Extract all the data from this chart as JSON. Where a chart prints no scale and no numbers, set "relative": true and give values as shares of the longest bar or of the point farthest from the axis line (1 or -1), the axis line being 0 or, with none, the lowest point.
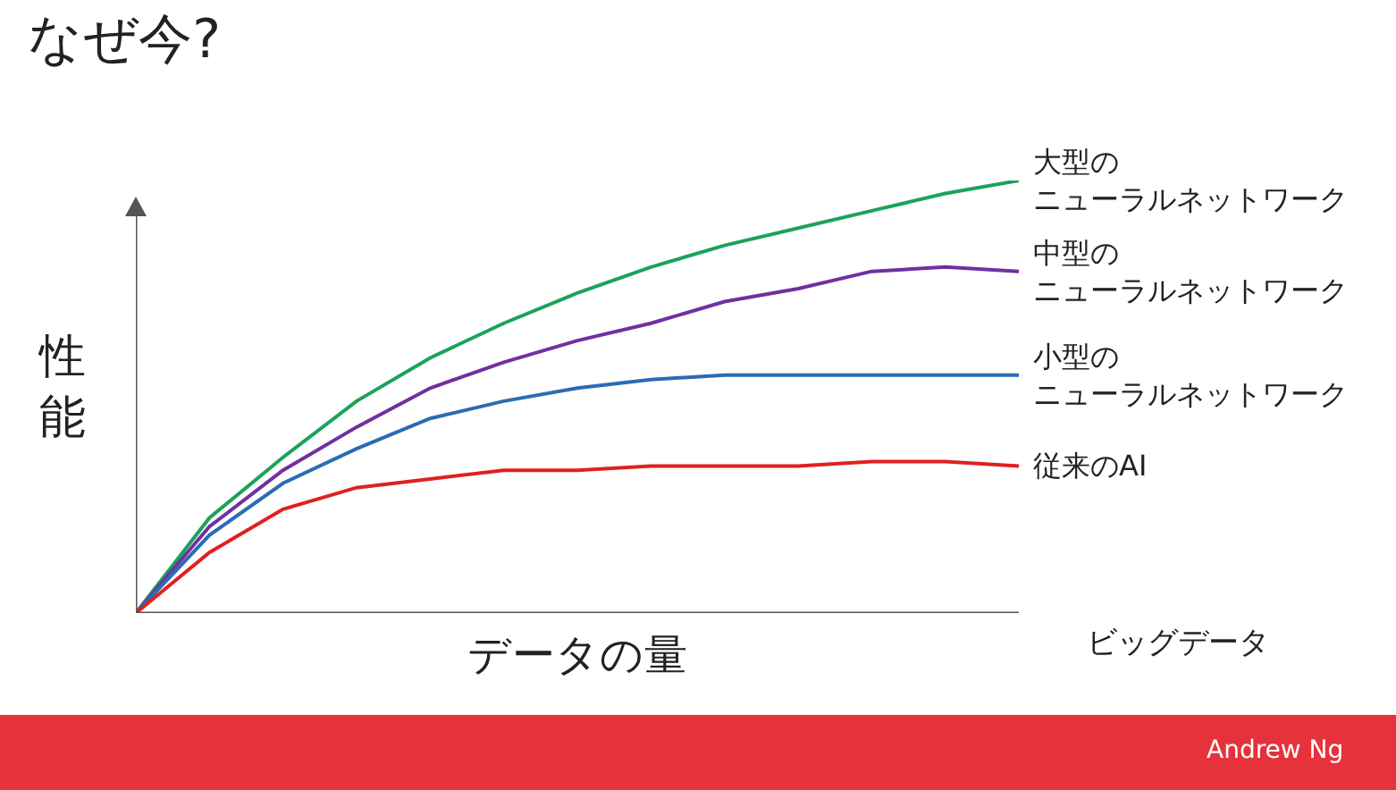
{
  "chart_data": {
    "type": "line",
    "title": "なぜ今?",
    "xlabel": "データの量",
    "ylabel": "性能",
    "relative": true,
    "legend": false,
    "grid": false,
    "marker": "none",
    "line_style": "solid",
    "categories": [
      null,
      null,
      null,
      null,
      null,
      null,
      null,
      null,
      null,
      null,
      null,
      null,
      null
    ],
    "series": [
      {
        "name": "大型のニューラルネットワーク",
        "color": "#1aa35a",
        "values": [
          0,
          0.22,
          0.36,
          0.49,
          0.59,
          0.67,
          0.74,
          0.8,
          0.85,
          0.89,
          0.93,
          0.97,
          1.0
        ]
      },
      {
        "name": "中型のニューラルネットワーク",
        "color": "#7030a0",
        "values": [
          0,
          0.2,
          0.33,
          0.43,
          0.52,
          0.58,
          0.63,
          0.67,
          0.72,
          0.75,
          0.79,
          0.8,
          0.79
        ]
      },
      {
        "name": "小型のニューラルネットワーク",
        "color": "#2a6cb3",
        "values": [
          0,
          0.18,
          0.3,
          0.38,
          0.45,
          0.49,
          0.52,
          0.54,
          0.55,
          0.55,
          0.55,
          0.55,
          0.55
        ]
      },
      {
        "name": "従来のAI",
        "color": "#e02020",
        "values": [
          0,
          0.14,
          0.24,
          0.29,
          0.31,
          0.33,
          0.33,
          0.34,
          0.34,
          0.34,
          0.35,
          0.35,
          0.34
        ]
      }
    ],
    "annotations": [
      "ビッグデータ",
      "Andrew Ng"
    ]
  }
}
